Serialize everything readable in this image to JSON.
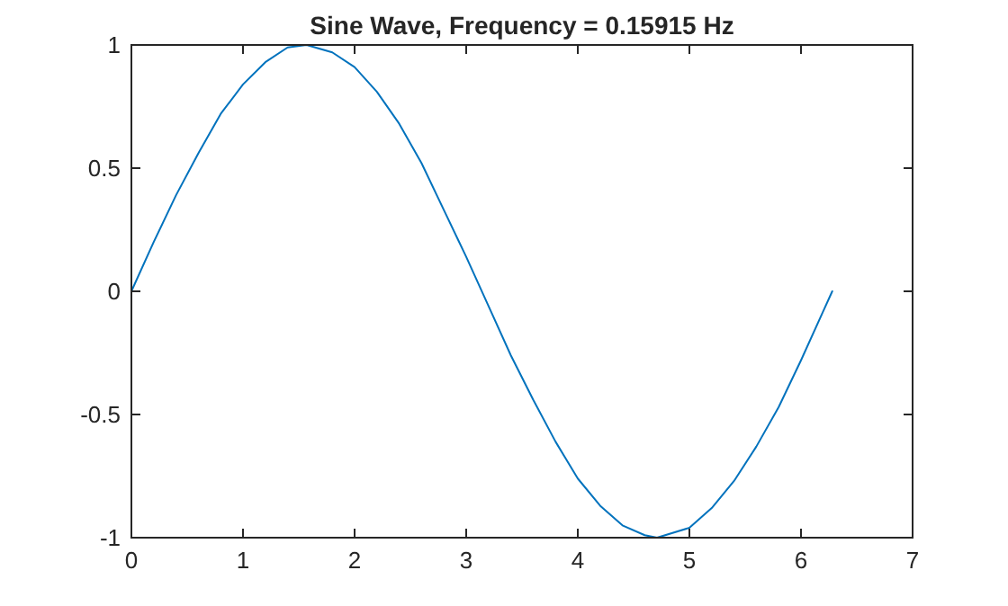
{
  "chart_data": {
    "type": "line",
    "title": "Sine Wave, Frequency = 0.15915 Hz",
    "x": [
      0,
      0.2,
      0.4,
      0.6,
      0.8,
      1.0,
      1.2,
      1.4,
      1.57,
      1.8,
      2.0,
      2.2,
      2.4,
      2.6,
      2.8,
      3.0,
      3.2,
      3.4,
      3.6,
      3.8,
      4.0,
      4.2,
      4.4,
      4.6,
      4.71,
      5.0,
      5.2,
      5.4,
      5.6,
      5.8,
      6.0,
      6.2,
      6.28
    ],
    "series": [
      {
        "color": "#0072bd",
        "values": [
          0,
          0.2,
          0.39,
          0.56,
          0.72,
          0.84,
          0.93,
          0.99,
          1,
          0.97,
          0.91,
          0.81,
          0.68,
          0.52,
          0.33,
          0.14,
          -0.06,
          -0.26,
          -0.44,
          -0.61,
          -0.76,
          -0.87,
          -0.95,
          -0.99,
          -1,
          -0.96,
          -0.88,
          -0.77,
          -0.63,
          -0.47,
          -0.28,
          -0.08,
          0
        ]
      }
    ],
    "xlim": [
      0,
      7
    ],
    "xticks": [
      0,
      1,
      2,
      3,
      4,
      5,
      6,
      7
    ],
    "ylim": [
      -1,
      1
    ],
    "yticks": [
      -1,
      {
        "value": -0.5,
        "label": "-0.5"
      },
      0,
      {
        "value": 0.5,
        "label": "0.5"
      },
      1
    ],
    "grid": false,
    "marker": "none",
    "line_style": "solid"
  }
}
